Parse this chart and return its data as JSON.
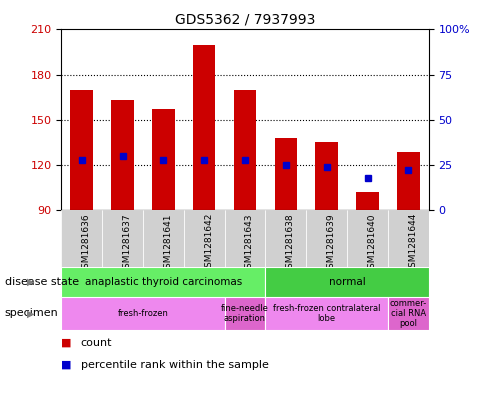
{
  "title": "GDS5362 / 7937993",
  "samples": [
    "GSM1281636",
    "GSM1281637",
    "GSM1281641",
    "GSM1281642",
    "GSM1281643",
    "GSM1281638",
    "GSM1281639",
    "GSM1281640",
    "GSM1281644"
  ],
  "counts": [
    170,
    163,
    157,
    200,
    170,
    138,
    135,
    102,
    129
  ],
  "percentile_ranks": [
    28,
    30,
    28,
    28,
    28,
    25,
    24,
    18,
    22
  ],
  "ylim_left": [
    90,
    210
  ],
  "ylim_right": [
    0,
    100
  ],
  "yticks_left": [
    90,
    120,
    150,
    180,
    210
  ],
  "yticks_right": [
    0,
    25,
    50,
    75,
    100
  ],
  "bar_color": "#cc0000",
  "dot_color": "#0000cc",
  "bar_bottom": 90,
  "disease_state_groups": [
    {
      "label": "anaplastic thyroid carcinomas",
      "start": 0,
      "end": 5,
      "color": "#66ee66"
    },
    {
      "label": "normal",
      "start": 5,
      "end": 9,
      "color": "#44cc44"
    }
  ],
  "specimen_groups": [
    {
      "label": "fresh-frozen",
      "start": 0,
      "end": 4,
      "color": "#ee88ee"
    },
    {
      "label": "fine-needle\naspiration",
      "start": 4,
      "end": 5,
      "color": "#dd66cc"
    },
    {
      "label": "fresh-frozen contralateral\nlobe",
      "start": 5,
      "end": 8,
      "color": "#ee88ee"
    },
    {
      "label": "commer-\ncial RNA\npool",
      "start": 8,
      "end": 9,
      "color": "#dd66cc"
    }
  ],
  "left_label": "disease state",
  "specimen_label": "specimen",
  "legend_count_label": "count",
  "legend_percentile_label": "percentile rank within the sample",
  "axis_label_color_left": "#cc0000",
  "axis_label_color_right": "#0000cc",
  "bg_plot": "#ffffff",
  "bg_xtick": "#d0d0d0",
  "grid_yticks": [
    120,
    150,
    180
  ]
}
